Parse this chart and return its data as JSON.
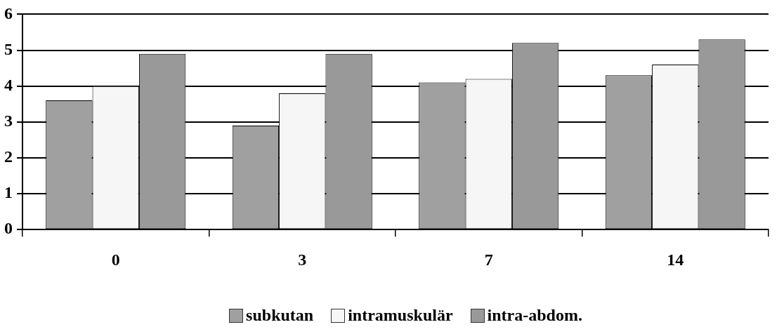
{
  "chart_data": {
    "type": "bar",
    "categories": [
      "0",
      "3",
      "7",
      "14"
    ],
    "series": [
      {
        "name": "subkutan",
        "color": "#a0a0a0",
        "values": [
          3.6,
          2.9,
          4.1,
          4.3
        ]
      },
      {
        "name": "intramuskulär",
        "color": "#f6f6f6",
        "values": [
          4.0,
          3.8,
          4.2,
          4.6
        ]
      },
      {
        "name": "intra-abdom.",
        "color": "#999999",
        "values": [
          4.9,
          4.9,
          5.2,
          5.3
        ]
      }
    ],
    "ylim": [
      0,
      6
    ],
    "yticks": [
      0,
      1,
      2,
      3,
      4,
      5,
      6
    ],
    "grid": "y",
    "legend": "bottom"
  }
}
